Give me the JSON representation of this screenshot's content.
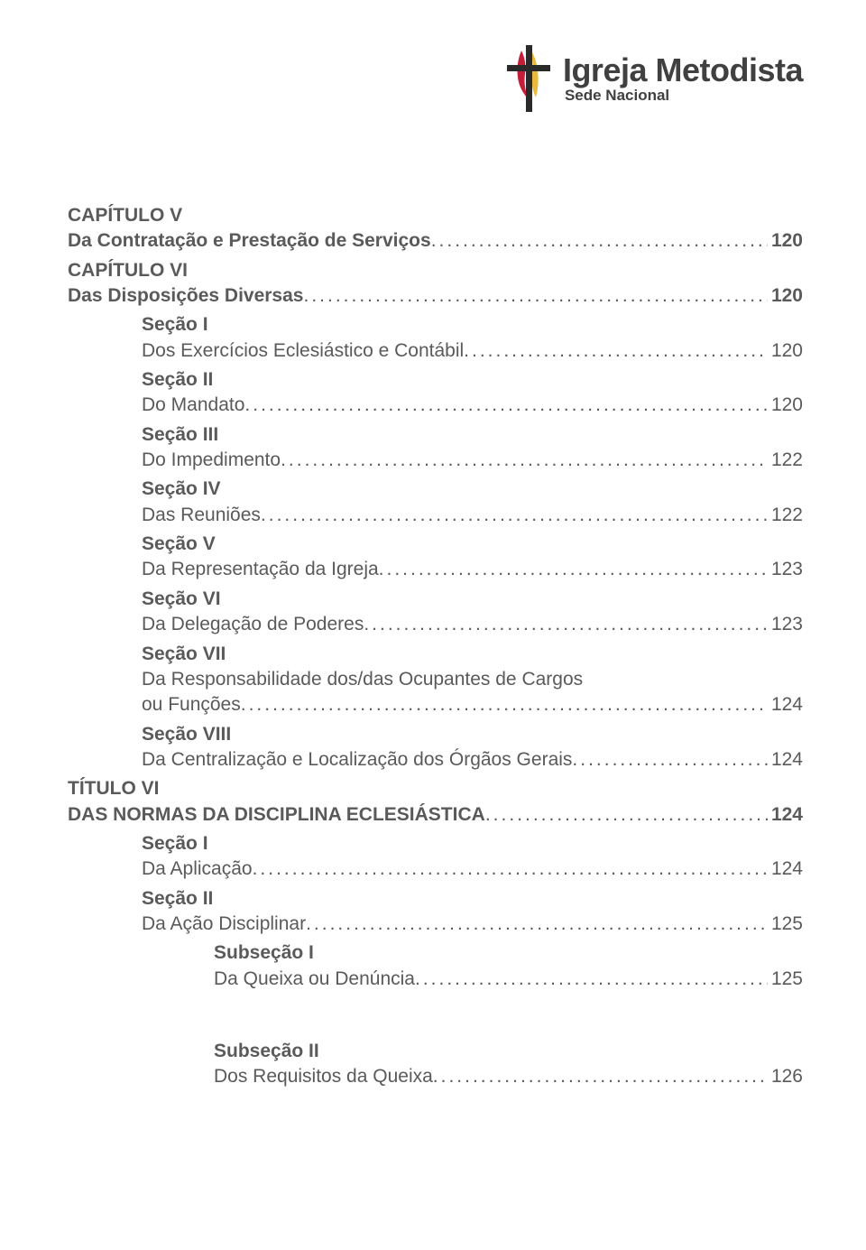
{
  "logo": {
    "main": "Igreja Metodista",
    "sub": "Sede Nacional"
  },
  "toc": [
    {
      "level": 0,
      "head": "CAPÍTULO V",
      "label": "Da Contratação e Prestação de Serviços",
      "page": "120",
      "bold": true
    },
    {
      "level": 0,
      "head": "CAPÍTULO VI",
      "label": "Das Disposições Diversas",
      "page": "120",
      "bold": true
    },
    {
      "level": 1,
      "head": "Seção I",
      "label": "Dos Exercícios Eclesiástico e Contábil",
      "page": "120"
    },
    {
      "level": 1,
      "head": "Seção II",
      "label": "Do Mandato",
      "page": "120"
    },
    {
      "level": 1,
      "head": "Seção III",
      "label": "Do Impedimento",
      "page": "122"
    },
    {
      "level": 1,
      "head": "Seção IV",
      "label": "Das Reuniões",
      "page": "122"
    },
    {
      "level": 1,
      "head": "Seção V",
      "label": "Da Representação da Igreja",
      "page": "123"
    },
    {
      "level": 1,
      "head": "Seção VI",
      "label": "Da Delegação de Poderes",
      "page": "123"
    },
    {
      "level": 1,
      "head": "Seção VII",
      "label_pre": "Da Responsabilidade dos/das Ocupantes de Cargos",
      "label": "ou Funções",
      "page": "124"
    },
    {
      "level": 1,
      "head": "Seção VIII",
      "label": "Da Centralização e Localização dos Órgãos Gerais",
      "page": "124"
    },
    {
      "level": 0,
      "head": "TÍTULO VI",
      "label": "DAS NORMAS DA DISCIPLINA ECLESIÁSTICA",
      "page": "124",
      "bold": true
    },
    {
      "level": 1,
      "head": "Seção I",
      "label": "Da Aplicação",
      "page": "124"
    },
    {
      "level": 1,
      "head": "Seção II",
      "label": "Da Ação Disciplinar",
      "page": "125"
    },
    {
      "level": 2,
      "head": "Subseção I",
      "label": "Da Queixa ou Denúncia",
      "page": "125",
      "gap_after": true
    },
    {
      "level": 2,
      "head": "Subseção II",
      "label": "Dos Requisitos da Queixa",
      "page": "126"
    }
  ]
}
